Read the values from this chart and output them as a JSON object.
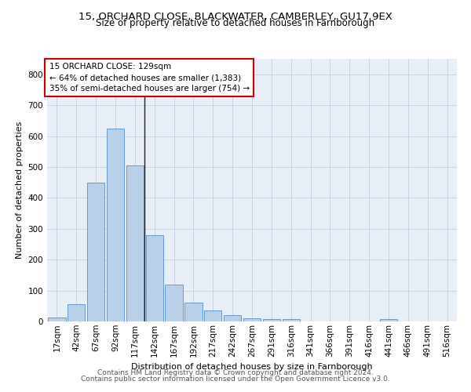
{
  "title1": "15, ORCHARD CLOSE, BLACKWATER, CAMBERLEY, GU17 9EX",
  "title2": "Size of property relative to detached houses in Farnborough",
  "xlabel": "Distribution of detached houses by size in Farnborough",
  "ylabel": "Number of detached properties",
  "footer1": "Contains HM Land Registry data © Crown copyright and database right 2024.",
  "footer2": "Contains public sector information licensed under the Open Government Licence v3.0.",
  "annotation_line1": "15 ORCHARD CLOSE: 129sqm",
  "annotation_line2": "← 64% of detached houses are smaller (1,383)",
  "annotation_line3": "35% of semi-detached houses are larger (754) →",
  "bar_labels": [
    "17sqm",
    "42sqm",
    "67sqm",
    "92sqm",
    "117sqm",
    "142sqm",
    "167sqm",
    "192sqm",
    "217sqm",
    "242sqm",
    "267sqm",
    "291sqm",
    "316sqm",
    "341sqm",
    "366sqm",
    "391sqm",
    "416sqm",
    "441sqm",
    "466sqm",
    "491sqm",
    "516sqm"
  ],
  "bar_values": [
    12,
    55,
    450,
    625,
    505,
    280,
    118,
    62,
    35,
    20,
    10,
    8,
    7,
    0,
    0,
    0,
    0,
    8,
    0,
    0,
    0
  ],
  "bar_color": "#b8d0e8",
  "bar_edge_color": "#6699cc",
  "vline_color": "#222222",
  "annotation_box_color": "#ffffff",
  "annotation_box_edge": "#cc0000",
  "ylim": [
    0,
    850
  ],
  "yticks": [
    0,
    100,
    200,
    300,
    400,
    500,
    600,
    700,
    800
  ],
  "grid_color": "#c8d4e4",
  "bg_color": "#e8eef6",
  "title_fontsize": 9.5,
  "subtitle_fontsize": 8.5,
  "axis_label_fontsize": 8,
  "tick_fontsize": 7.5,
  "footer_fontsize": 6.5,
  "annotation_fontsize": 7.5
}
